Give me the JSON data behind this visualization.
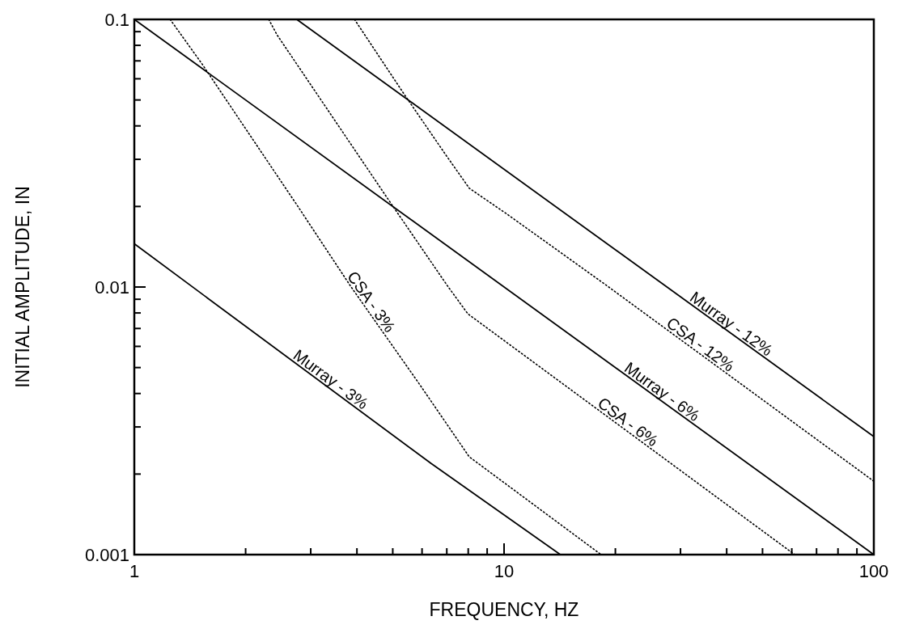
{
  "chart_data": {
    "type": "line",
    "xlabel": "FREQUENCY, HZ",
    "ylabel": "INITIAL AMPLITUDE, IN",
    "log": "xy",
    "grid": false,
    "xlim": [
      1,
      100
    ],
    "ylim": [
      0.001,
      0.1
    ],
    "xticks": [
      1,
      {
        "value": 2,
        "label": null
      },
      {
        "value": 3,
        "label": null
      },
      {
        "value": 4,
        "label": null
      },
      {
        "value": 5,
        "label": null
      },
      {
        "value": 6,
        "label": null
      },
      {
        "value": 7,
        "label": null
      },
      {
        "value": 8,
        "label": null
      },
      {
        "value": 9,
        "label": null
      },
      10,
      {
        "value": 20,
        "label": null
      },
      {
        "value": 30,
        "label": null
      },
      {
        "value": 40,
        "label": null
      },
      {
        "value": 50,
        "label": null
      },
      {
        "value": 60,
        "label": null
      },
      {
        "value": 70,
        "label": null
      },
      {
        "value": 80,
        "label": null
      },
      {
        "value": 90,
        "label": null
      },
      100
    ],
    "yticks": [
      0.001,
      {
        "value": 0.002,
        "label": null
      },
      {
        "value": 0.003,
        "label": null
      },
      {
        "value": 0.004,
        "label": null
      },
      {
        "value": 0.005,
        "label": null
      },
      {
        "value": 0.006,
        "label": null
      },
      {
        "value": 0.007,
        "label": null
      },
      {
        "value": 0.008,
        "label": null
      },
      {
        "value": 0.009,
        "label": null
      },
      0.01,
      {
        "value": 0.02,
        "label": null
      },
      {
        "value": 0.03,
        "label": null
      },
      {
        "value": 0.04,
        "label": null
      },
      {
        "value": 0.05,
        "label": null
      },
      {
        "value": 0.06,
        "label": null
      },
      {
        "value": 0.07,
        "label": null
      },
      {
        "value": 0.08,
        "label": null
      },
      {
        "value": 0.09,
        "label": null
      },
      0.1
    ],
    "series": [
      {
        "name": "Murray - 12%",
        "color": "#000000",
        "line_style": "solid",
        "x": [
          2.75,
          100
        ],
        "values": [
          0.1,
          0.00276
        ]
      },
      {
        "name": "CSA - 12%",
        "color": "#000000",
        "line_style": "dotted",
        "x": [
          3.94,
          5.38,
          6.92,
          8.05,
          10.2,
          19,
          100
        ],
        "values": [
          0.1,
          0.0523,
          0.0315,
          0.0234,
          0.0187,
          0.0101,
          0.00188
        ]
      },
      {
        "name": "Murray - 6%",
        "color": "#000000",
        "line_style": "solid",
        "x": [
          1,
          100
        ],
        "values": [
          0.1,
          0.001
        ]
      },
      {
        "name": "CSA - 6%",
        "color": "#000000",
        "line_style": "dotted",
        "x": [
          2.31,
          2.43,
          4.8,
          7.03,
          7.98,
          61.1
        ],
        "values": [
          0.1,
          0.0877,
          0.0218,
          0.0101,
          0.00794,
          0.001
        ]
      },
      {
        "name": "CSA - 3%",
        "color": "#000000",
        "line_style": "dotted",
        "x": [
          1.25,
          1.53,
          1.96,
          2.75,
          3.84,
          5.86,
          8.05,
          18.3
        ],
        "values": [
          0.1,
          0.0677,
          0.0407,
          0.0203,
          0.0101,
          0.0044,
          0.00232,
          0.001
        ]
      },
      {
        "name": "Murray - 3%",
        "color": "#000000",
        "line_style": "solid",
        "x": [
          1,
          6.35,
          14.2
        ],
        "values": [
          0.0145,
          0.00219,
          0.001
        ]
      }
    ]
  }
}
